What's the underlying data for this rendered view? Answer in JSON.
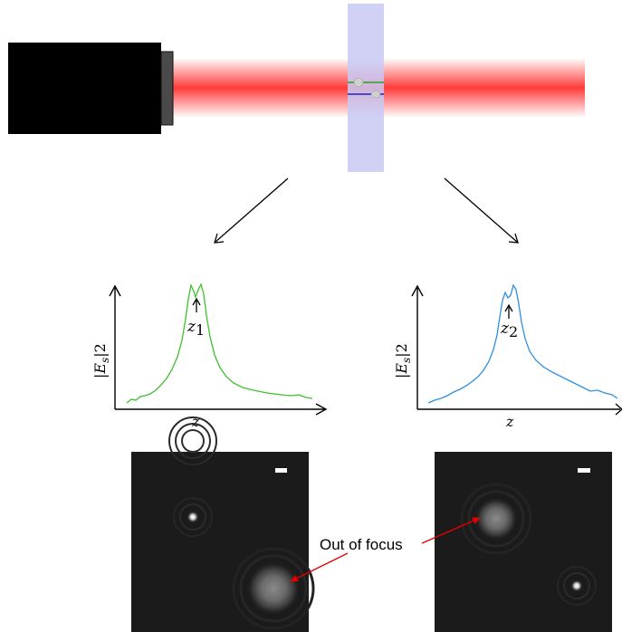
{
  "plots": {
    "left": {
      "ylabel": "|E",
      "ylabel_sub": "s",
      "ylabel_sup": "|2",
      "xlabel": "z",
      "marker": "z",
      "marker_sub": "1",
      "curve_color": "#3fbf2f"
    },
    "right": {
      "ylabel": "|E",
      "ylabel_sub": "s",
      "ylabel_sup": "|2",
      "xlabel": "z",
      "marker": "z",
      "marker_sub": "2",
      "curve_color": "#2f8fe0"
    }
  },
  "annotation": {
    "text": "Out of focus",
    "arrow_color": "#e00000"
  },
  "beam": {
    "color": "#ff3b3b"
  },
  "sample_cell": {
    "color": "#c9c9f5",
    "particle_lines": [
      "#2aa02a",
      "#2020c0"
    ]
  }
}
